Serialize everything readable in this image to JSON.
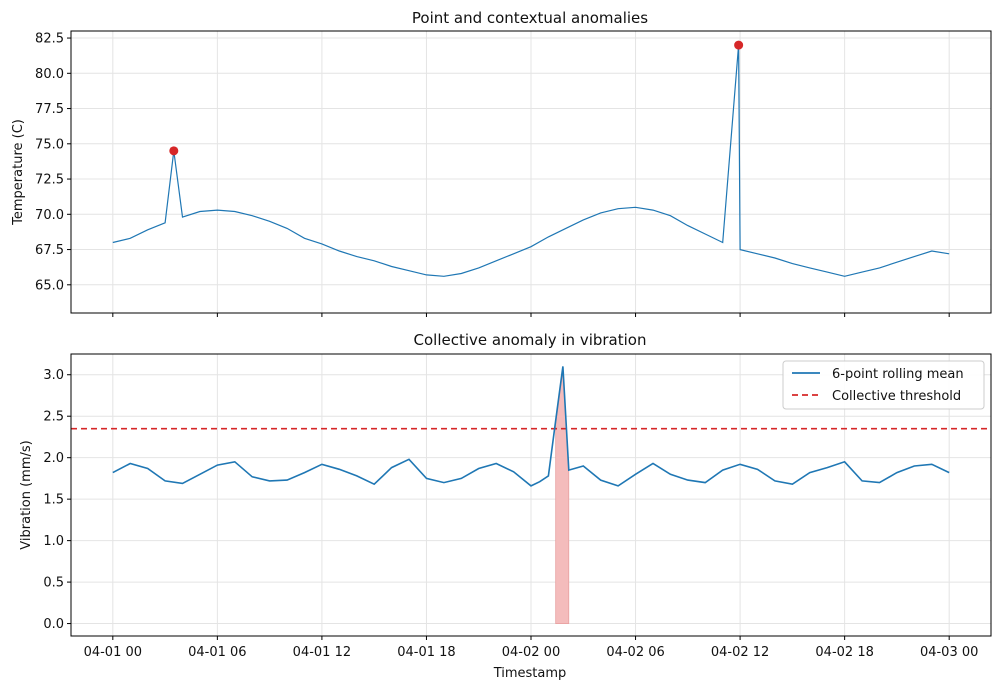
{
  "chart_data": [
    {
      "type": "line",
      "title": "Point and contextual anomalies",
      "xlabel": "",
      "ylabel": "Temperature (C)",
      "xlim": [
        "2024-03-31 21:36",
        "2024-04-03 02:24"
      ],
      "ylim": [
        63.0,
        83.0
      ],
      "yticks": [
        "65.0",
        "67.5",
        "70.0",
        "72.5",
        "75.0",
        "77.5",
        "80.0",
        "82.5"
      ],
      "xtick_labels": [],
      "grid": true,
      "series_color": "#1f77b4",
      "marker_color": "#d62728",
      "series": [
        {
          "x": [
            "04-01 00",
            "04-01 01",
            "04-01 02",
            "04-01 03",
            "04-01 03:30",
            "04-01 04",
            "04-01 05",
            "04-01 06",
            "04-01 07",
            "04-01 08",
            "04-01 09",
            "04-01 10",
            "04-01 11",
            "04-01 12",
            "04-01 13",
            "04-01 14",
            "04-01 15",
            "04-01 16",
            "04-01 17",
            "04-01 18",
            "04-01 19",
            "04-01 20",
            "04-01 21",
            "04-01 22",
            "04-01 23",
            "04-02 00",
            "04-02 01",
            "04-02 02",
            "04-02 03",
            "04-02 04",
            "04-02 05",
            "04-02 06",
            "04-02 07",
            "04-02 08",
            "04-02 09",
            "04-02 10",
            "04-02 11",
            "04-02 11:55",
            "04-02 12",
            "04-02 13",
            "04-02 14",
            "04-02 15",
            "04-02 16",
            "04-02 17",
            "04-02 18",
            "04-02 19",
            "04-02 20",
            "04-02 21",
            "04-02 22",
            "04-02 23",
            "04-03 00"
          ],
          "values": [
            68.0,
            68.3,
            68.9,
            69.4,
            74.5,
            69.8,
            70.2,
            70.3,
            70.2,
            69.9,
            69.5,
            69.0,
            68.3,
            67.9,
            67.4,
            67.0,
            66.7,
            66.3,
            66.0,
            65.7,
            65.6,
            65.8,
            66.2,
            66.7,
            67.2,
            67.7,
            68.4,
            69.0,
            69.6,
            70.1,
            70.4,
            70.5,
            70.3,
            69.9,
            69.2,
            68.6,
            68.0,
            82.0,
            67.5,
            67.2,
            66.9,
            66.5,
            66.2,
            65.9,
            65.6,
            65.9,
            66.2,
            66.6,
            67.0,
            67.4,
            67.2
          ]
        }
      ],
      "anomaly_points": [
        {
          "x": "04-01 03:30",
          "y": 74.5
        },
        {
          "x": "04-02 11:55",
          "y": 82.0
        }
      ]
    },
    {
      "type": "line",
      "title": "Collective anomaly in vibration",
      "xlabel": "Timestamp",
      "ylabel": "Vibration (mm/s)",
      "xlim": [
        "2024-03-31 21:36",
        "2024-04-03 02:24"
      ],
      "ylim": [
        -0.15,
        3.25
      ],
      "yticks": [
        "0.0",
        "0.5",
        "1.0",
        "1.5",
        "2.0",
        "2.5",
        "3.0"
      ],
      "xtick_labels": [
        "04-01 00",
        "04-01 06",
        "04-01 12",
        "04-01 18",
        "04-02 00",
        "04-02 06",
        "04-02 12",
        "04-02 18",
        "04-03 00"
      ],
      "grid": true,
      "legend": {
        "placement": "top-right",
        "entries": [
          "6-point rolling mean",
          "Collective threshold"
        ]
      },
      "threshold": {
        "name": "Collective threshold",
        "value": 2.35,
        "color": "#d62728"
      },
      "anomaly_span": {
        "x_start": "04-02 01:25",
        "x_end": "04-02 02:10",
        "height": 3.05,
        "color": "#f4bcbc"
      },
      "series": [
        {
          "name": "6-point rolling mean",
          "color": "#1f77b4",
          "x": [
            "04-01 00",
            "04-01 01",
            "04-01 02",
            "04-01 03",
            "04-01 04",
            "04-01 05",
            "04-01 06",
            "04-01 07",
            "04-01 08",
            "04-01 09",
            "04-01 10",
            "04-01 11",
            "04-01 12",
            "04-01 13",
            "04-01 14",
            "04-01 15",
            "04-01 16",
            "04-01 17",
            "04-01 18",
            "04-01 19",
            "04-01 20",
            "04-01 21",
            "04-01 22",
            "04-01 23",
            "04-02 00",
            "04-02 00:30",
            "04-02 01",
            "04-02 01:25",
            "04-02 01:50",
            "04-02 02:10",
            "04-02 03",
            "04-02 04",
            "04-02 05",
            "04-02 06",
            "04-02 07",
            "04-02 08",
            "04-02 09",
            "04-02 10",
            "04-02 11",
            "04-02 12",
            "04-02 13",
            "04-02 14",
            "04-02 15",
            "04-02 16",
            "04-02 17",
            "04-02 18",
            "04-02 19",
            "04-02 20",
            "04-02 21",
            "04-02 22",
            "04-02 23",
            "04-03 00"
          ],
          "values": [
            1.82,
            1.93,
            1.87,
            1.72,
            1.69,
            1.8,
            1.91,
            1.95,
            1.77,
            1.72,
            1.73,
            1.82,
            1.92,
            1.86,
            1.78,
            1.68,
            1.88,
            1.98,
            1.75,
            1.7,
            1.75,
            1.87,
            1.93,
            1.83,
            1.66,
            1.71,
            1.78,
            2.45,
            3.1,
            1.85,
            1.9,
            1.73,
            1.66,
            1.8,
            1.93,
            1.8,
            1.73,
            1.7,
            1.85,
            1.92,
            1.86,
            1.72,
            1.68,
            1.82,
            1.88,
            1.95,
            1.72,
            1.7,
            1.82,
            1.9,
            1.92,
            1.82
          ]
        }
      ]
    }
  ]
}
